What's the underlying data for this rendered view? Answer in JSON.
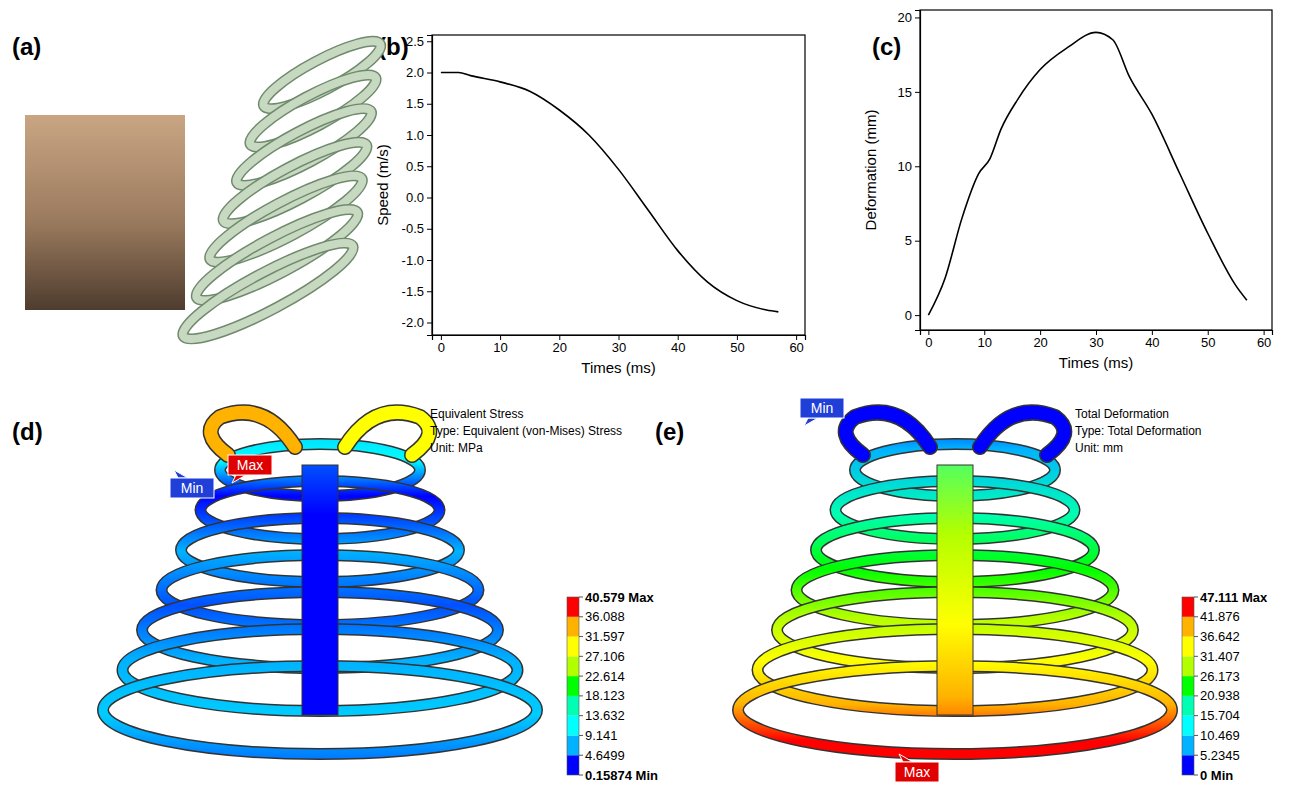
{
  "panel_labels": [
    "(a)",
    "(b)",
    "(c)",
    "(d)",
    "(e)"
  ],
  "chart_data": [
    {
      "type": "line",
      "x_label": "Times (ms)",
      "y_label": "Speed (m/s)",
      "color": "#000000",
      "x": [
        0,
        3,
        5,
        10,
        15,
        20,
        25,
        30,
        35,
        40,
        45,
        50,
        55,
        57
      ],
      "values": [
        2.0,
        2.0,
        1.95,
        1.85,
        1.7,
        1.4,
        1.0,
        0.45,
        -0.2,
        -0.85,
        -1.35,
        -1.65,
        -1.8,
        -1.83
      ],
      "xlim": [
        -1.5,
        61.5
      ],
      "ylim": [
        -2.2,
        2.6
      ],
      "xticks": [
        0,
        10,
        20,
        30,
        40,
        50,
        60
      ],
      "yticks": [
        {
          "value": 2.5,
          "label": "2.5"
        },
        {
          "value": 2,
          "label": "2.0"
        },
        {
          "value": 1.5,
          "label": "1.5"
        },
        {
          "value": 1,
          "label": "1.0"
        },
        {
          "value": 0.5,
          "label": "0.5"
        },
        {
          "value": 0,
          "label": "0.0"
        },
        {
          "value": -0.5,
          "label": "-0.5"
        },
        {
          "value": -1,
          "label": "-1.0"
        },
        {
          "value": -1.5,
          "label": "-1.5"
        },
        {
          "value": -2,
          "label": "-2.0"
        }
      ],
      "grid": false
    },
    {
      "type": "line",
      "x_label": "Times (ms)",
      "y_label": "Deformation (mm)",
      "color": "#000000",
      "x": [
        0,
        3,
        6,
        9,
        11,
        13,
        16,
        20,
        25,
        30,
        33,
        36,
        40,
        45,
        50,
        55,
        57
      ],
      "values": [
        0,
        2.5,
        6.5,
        9.5,
        10.5,
        12.5,
        14.5,
        16.5,
        18,
        19,
        18.5,
        16,
        13.5,
        9.5,
        5.5,
        2,
        1
      ],
      "xlim": [
        -1.5,
        61.5
      ],
      "ylim": [
        -1,
        20.5
      ],
      "xticks": [
        0,
        10,
        20,
        30,
        40,
        50,
        60
      ],
      "yticks": [
        0,
        5,
        10,
        15,
        20
      ],
      "grid": false
    }
  ],
  "contour_plots": [
    {
      "title_lines": [
        "Equivalent Stress",
        "Type: Equivalent (von-Mises) Stress",
        "Unit: MPa"
      ],
      "colorbar_ticks": [
        {
          "value": 40.579,
          "label": "40.579 Max"
        },
        36.088,
        31.597,
        27.106,
        22.614,
        18.123,
        13.632,
        9.141,
        4.6499,
        {
          "value": 0.15874,
          "label": "0.15874 Min"
        }
      ],
      "max_marker": "Max",
      "min_marker": "Min"
    },
    {
      "title_lines": [
        "Total Deformation",
        "Type: Total Deformation",
        "Unit: mm"
      ],
      "colorbar_ticks": [
        {
          "value": 47.111,
          "label": "47.111 Max"
        },
        41.876,
        36.642,
        31.407,
        26.173,
        20.938,
        15.704,
        10.469,
        5.2345,
        {
          "value": 0,
          "label": "0 Min"
        }
      ],
      "max_marker": "Max",
      "min_marker": "Min"
    }
  ]
}
